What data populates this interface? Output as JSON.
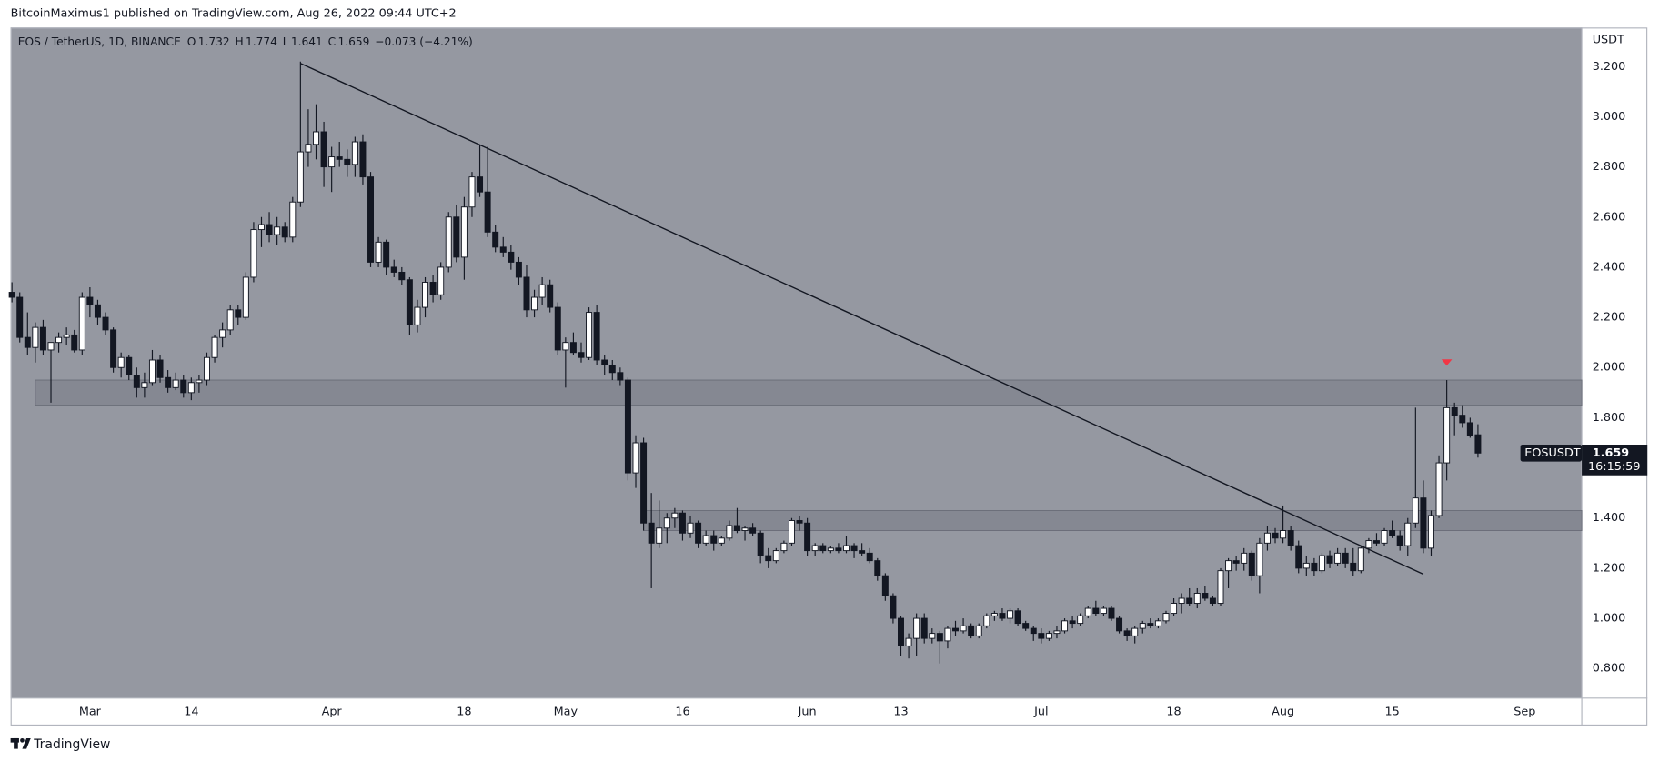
{
  "header": {
    "author_line": "BitcoinMaximus1 published on TradingView.com, Aug 26, 2022 09:44 UTC+2"
  },
  "footer": {
    "brand": "TradingView"
  },
  "chart_data": {
    "type": "candlestick",
    "symbol_line": "EOS / TetherUS, 1D, BINANCE",
    "ohlc_labels": [
      "O",
      "H",
      "L",
      "C"
    ],
    "change": "−0.073 (−4.21%)",
    "unit": "USDT",
    "ticker": "EOSUSDT",
    "countdown": "16:15:59",
    "up_color": "#ffffff",
    "down_color": "#131722",
    "marker_color": "#f23645",
    "x": [
      "02-19",
      "02-20",
      "02-21",
      "02-22",
      "02-23",
      "02-24",
      "02-25",
      "02-26",
      "02-27",
      "02-28",
      "03-01",
      "03-02",
      "03-03",
      "03-04",
      "03-05",
      "03-06",
      "03-07",
      "03-08",
      "03-09",
      "03-10",
      "03-11",
      "03-12",
      "03-13",
      "03-14",
      "03-15",
      "03-16",
      "03-17",
      "03-18",
      "03-19",
      "03-20",
      "03-21",
      "03-22",
      "03-23",
      "03-24",
      "03-25",
      "03-26",
      "03-27",
      "03-28",
      "03-29",
      "03-30",
      "03-31",
      "04-01",
      "04-02",
      "04-03",
      "04-04",
      "04-05",
      "04-06",
      "04-07",
      "04-08",
      "04-09",
      "04-10",
      "04-11",
      "04-12",
      "04-13",
      "04-14",
      "04-15",
      "04-16",
      "04-17",
      "04-18",
      "04-19",
      "04-20",
      "04-21",
      "04-22",
      "04-23",
      "04-24",
      "04-25",
      "04-26",
      "04-27",
      "04-28",
      "04-29",
      "04-30",
      "05-01",
      "05-02",
      "05-03",
      "05-04",
      "05-05",
      "05-06",
      "05-07",
      "05-08",
      "05-09",
      "05-10",
      "05-11",
      "05-12",
      "05-13",
      "05-14",
      "05-15",
      "05-16",
      "05-17",
      "05-18",
      "05-19",
      "05-20",
      "05-21",
      "05-22",
      "05-23",
      "05-24",
      "05-25",
      "05-26",
      "05-27",
      "05-28",
      "05-29",
      "05-30",
      "05-31",
      "06-01",
      "06-02",
      "06-03",
      "06-04",
      "06-05",
      "06-06",
      "06-07",
      "06-08",
      "06-09",
      "06-10",
      "06-11",
      "06-12",
      "06-13",
      "06-14",
      "06-15",
      "06-16",
      "06-17",
      "06-18",
      "06-19",
      "06-20",
      "06-21",
      "06-22",
      "06-23",
      "06-24",
      "06-25",
      "06-26",
      "06-27",
      "06-28",
      "06-29",
      "06-30",
      "07-01",
      "07-02",
      "07-03",
      "07-04",
      "07-05",
      "07-06",
      "07-07",
      "07-08",
      "07-09",
      "07-10",
      "07-11",
      "07-12",
      "07-13",
      "07-14",
      "07-15",
      "07-16",
      "07-17",
      "07-18",
      "07-19",
      "07-20",
      "07-21",
      "07-22",
      "07-23",
      "07-24",
      "07-25",
      "07-26",
      "07-27",
      "07-28",
      "07-29",
      "07-30",
      "07-31",
      "08-01",
      "08-02",
      "08-03",
      "08-04",
      "08-05",
      "08-06",
      "08-07",
      "08-08",
      "08-09",
      "08-10",
      "08-11",
      "08-12",
      "08-13",
      "08-14",
      "08-15",
      "08-16",
      "08-17",
      "08-18",
      "08-19",
      "08-20",
      "08-21",
      "08-22",
      "08-23",
      "08-24",
      "08-25",
      "08-26"
    ],
    "ohlc": [
      [
        2.3,
        2.34,
        2.26,
        2.28
      ],
      [
        2.28,
        2.3,
        2.1,
        2.12
      ],
      [
        2.12,
        2.22,
        2.05,
        2.08
      ],
      [
        2.08,
        2.18,
        2.02,
        2.16
      ],
      [
        2.16,
        2.19,
        2.05,
        2.07
      ],
      [
        2.07,
        2.1,
        1.86,
        2.1
      ],
      [
        2.1,
        2.14,
        2.06,
        2.12
      ],
      [
        2.12,
        2.16,
        2.09,
        2.13
      ],
      [
        2.13,
        2.15,
        2.06,
        2.07
      ],
      [
        2.07,
        2.3,
        2.05,
        2.28
      ],
      [
        2.28,
        2.32,
        2.2,
        2.25
      ],
      [
        2.25,
        2.27,
        2.17,
        2.2
      ],
      [
        2.2,
        2.22,
        2.13,
        2.15
      ],
      [
        2.15,
        2.16,
        1.98,
        2.0
      ],
      [
        2.0,
        2.06,
        1.96,
        2.04
      ],
      [
        2.04,
        2.05,
        1.95,
        1.97
      ],
      [
        1.97,
        2.0,
        1.88,
        1.92
      ],
      [
        1.92,
        1.98,
        1.88,
        1.94
      ],
      [
        1.94,
        2.07,
        1.93,
        2.03
      ],
      [
        2.03,
        2.05,
        1.94,
        1.96
      ],
      [
        1.96,
        1.99,
        1.9,
        1.92
      ],
      [
        1.92,
        1.98,
        1.91,
        1.95
      ],
      [
        1.95,
        1.97,
        1.88,
        1.9
      ],
      [
        1.9,
        1.96,
        1.87,
        1.94
      ],
      [
        1.94,
        1.97,
        1.9,
        1.95
      ],
      [
        1.95,
        2.06,
        1.93,
        2.04
      ],
      [
        2.04,
        2.13,
        2.02,
        2.12
      ],
      [
        2.12,
        2.18,
        2.08,
        2.15
      ],
      [
        2.15,
        2.25,
        2.13,
        2.23
      ],
      [
        2.23,
        2.25,
        2.17,
        2.2
      ],
      [
        2.2,
        2.38,
        2.19,
        2.36
      ],
      [
        2.36,
        2.58,
        2.34,
        2.55
      ],
      [
        2.55,
        2.6,
        2.48,
        2.57
      ],
      [
        2.57,
        2.62,
        2.5,
        2.53
      ],
      [
        2.53,
        2.6,
        2.49,
        2.56
      ],
      [
        2.56,
        2.58,
        2.5,
        2.52
      ],
      [
        2.52,
        2.68,
        2.5,
        2.66
      ],
      [
        2.66,
        3.22,
        2.64,
        2.86
      ],
      [
        2.86,
        3.03,
        2.8,
        2.89
      ],
      [
        2.89,
        3.05,
        2.83,
        2.94
      ],
      [
        2.94,
        2.98,
        2.72,
        2.8
      ],
      [
        2.8,
        2.88,
        2.7,
        2.84
      ],
      [
        2.84,
        2.9,
        2.8,
        2.83
      ],
      [
        2.83,
        2.87,
        2.76,
        2.81
      ],
      [
        2.81,
        2.92,
        2.76,
        2.9
      ],
      [
        2.9,
        2.93,
        2.73,
        2.76
      ],
      [
        2.76,
        2.78,
        2.4,
        2.42
      ],
      [
        2.42,
        2.52,
        2.4,
        2.5
      ],
      [
        2.5,
        2.51,
        2.37,
        2.4
      ],
      [
        2.4,
        2.43,
        2.36,
        2.38
      ],
      [
        2.38,
        2.4,
        2.33,
        2.35
      ],
      [
        2.35,
        2.36,
        2.13,
        2.17
      ],
      [
        2.17,
        2.27,
        2.14,
        2.24
      ],
      [
        2.24,
        2.36,
        2.2,
        2.34
      ],
      [
        2.34,
        2.37,
        2.26,
        2.29
      ],
      [
        2.29,
        2.42,
        2.27,
        2.4
      ],
      [
        2.4,
        2.62,
        2.38,
        2.6
      ],
      [
        2.6,
        2.65,
        2.42,
        2.44
      ],
      [
        2.44,
        2.68,
        2.35,
        2.64
      ],
      [
        2.64,
        2.78,
        2.6,
        2.76
      ],
      [
        2.76,
        2.89,
        2.68,
        2.7
      ],
      [
        2.7,
        2.88,
        2.52,
        2.54
      ],
      [
        2.54,
        2.57,
        2.46,
        2.48
      ],
      [
        2.48,
        2.52,
        2.44,
        2.46
      ],
      [
        2.46,
        2.49,
        2.39,
        2.42
      ],
      [
        2.42,
        2.44,
        2.33,
        2.36
      ],
      [
        2.36,
        2.41,
        2.2,
        2.23
      ],
      [
        2.23,
        2.31,
        2.2,
        2.28
      ],
      [
        2.28,
        2.36,
        2.25,
        2.33
      ],
      [
        2.33,
        2.35,
        2.22,
        2.24
      ],
      [
        2.24,
        2.26,
        2.05,
        2.07
      ],
      [
        2.07,
        2.12,
        1.92,
        2.1
      ],
      [
        2.1,
        2.14,
        2.05,
        2.06
      ],
      [
        2.06,
        2.1,
        2.02,
        2.04
      ],
      [
        2.04,
        2.24,
        2.03,
        2.22
      ],
      [
        2.22,
        2.25,
        2.01,
        2.03
      ],
      [
        2.03,
        2.05,
        1.97,
        2.01
      ],
      [
        2.01,
        2.03,
        1.95,
        1.98
      ],
      [
        1.98,
        2.0,
        1.93,
        1.95
      ],
      [
        1.95,
        1.96,
        1.55,
        1.58
      ],
      [
        1.58,
        1.73,
        1.52,
        1.7
      ],
      [
        1.7,
        1.72,
        1.35,
        1.38
      ],
      [
        1.38,
        1.5,
        1.12,
        1.3
      ],
      [
        1.3,
        1.47,
        1.28,
        1.36
      ],
      [
        1.36,
        1.42,
        1.3,
        1.4
      ],
      [
        1.4,
        1.44,
        1.36,
        1.42
      ],
      [
        1.42,
        1.43,
        1.31,
        1.34
      ],
      [
        1.34,
        1.41,
        1.32,
        1.38
      ],
      [
        1.38,
        1.39,
        1.28,
        1.3
      ],
      [
        1.3,
        1.35,
        1.29,
        1.33
      ],
      [
        1.33,
        1.35,
        1.27,
        1.3
      ],
      [
        1.3,
        1.33,
        1.29,
        1.32
      ],
      [
        1.32,
        1.39,
        1.31,
        1.37
      ],
      [
        1.37,
        1.44,
        1.34,
        1.35
      ],
      [
        1.35,
        1.37,
        1.31,
        1.36
      ],
      [
        1.36,
        1.38,
        1.33,
        1.34
      ],
      [
        1.34,
        1.35,
        1.22,
        1.25
      ],
      [
        1.25,
        1.28,
        1.2,
        1.23
      ],
      [
        1.23,
        1.28,
        1.22,
        1.27
      ],
      [
        1.27,
        1.31,
        1.26,
        1.3
      ],
      [
        1.3,
        1.4,
        1.29,
        1.39
      ],
      [
        1.39,
        1.41,
        1.35,
        1.38
      ],
      [
        1.38,
        1.4,
        1.25,
        1.27
      ],
      [
        1.27,
        1.3,
        1.25,
        1.29
      ],
      [
        1.29,
        1.3,
        1.26,
        1.27
      ],
      [
        1.27,
        1.29,
        1.26,
        1.28
      ],
      [
        1.28,
        1.3,
        1.26,
        1.27
      ],
      [
        1.27,
        1.33,
        1.26,
        1.29
      ],
      [
        1.29,
        1.3,
        1.24,
        1.27
      ],
      [
        1.27,
        1.3,
        1.25,
        1.26
      ],
      [
        1.26,
        1.28,
        1.22,
        1.23
      ],
      [
        1.23,
        1.24,
        1.15,
        1.17
      ],
      [
        1.17,
        1.18,
        1.07,
        1.09
      ],
      [
        1.09,
        1.1,
        0.98,
        1.0
      ],
      [
        1.0,
        1.01,
        0.85,
        0.89
      ],
      [
        0.89,
        0.94,
        0.84,
        0.92
      ],
      [
        0.92,
        1.02,
        0.85,
        1.0
      ],
      [
        1.0,
        1.02,
        0.9,
        0.92
      ],
      [
        0.92,
        0.96,
        0.9,
        0.94
      ],
      [
        0.94,
        0.95,
        0.82,
        0.91
      ],
      [
        0.91,
        0.97,
        0.88,
        0.96
      ],
      [
        0.96,
        0.99,
        0.93,
        0.95
      ],
      [
        0.95,
        1.0,
        0.94,
        0.97
      ],
      [
        0.97,
        0.98,
        0.92,
        0.93
      ],
      [
        0.93,
        0.98,
        0.92,
        0.97
      ],
      [
        0.97,
        1.02,
        0.96,
        1.01
      ],
      [
        1.01,
        1.03,
        0.99,
        1.02
      ],
      [
        1.02,
        1.04,
        0.99,
        1.0
      ],
      [
        1.0,
        1.04,
        0.98,
        1.03
      ],
      [
        1.03,
        1.04,
        0.97,
        0.98
      ],
      [
        0.98,
        0.99,
        0.95,
        0.96
      ],
      [
        0.96,
        0.97,
        0.91,
        0.94
      ],
      [
        0.94,
        0.96,
        0.9,
        0.92
      ],
      [
        0.92,
        0.95,
        0.91,
        0.94
      ],
      [
        0.94,
        0.97,
        0.92,
        0.95
      ],
      [
        0.95,
        1.0,
        0.94,
        0.99
      ],
      [
        0.99,
        1.01,
        0.96,
        0.98
      ],
      [
        0.98,
        1.02,
        0.97,
        1.01
      ],
      [
        1.01,
        1.05,
        1.0,
        1.04
      ],
      [
        1.04,
        1.07,
        1.01,
        1.02
      ],
      [
        1.02,
        1.05,
        1.01,
        1.04
      ],
      [
        1.04,
        1.05,
        0.99,
        1.0
      ],
      [
        1.0,
        1.01,
        0.94,
        0.95
      ],
      [
        0.95,
        0.96,
        0.91,
        0.93
      ],
      [
        0.93,
        0.97,
        0.9,
        0.96
      ],
      [
        0.96,
        0.99,
        0.94,
        0.98
      ],
      [
        0.98,
        1.0,
        0.96,
        0.97
      ],
      [
        0.97,
        1.0,
        0.96,
        0.99
      ],
      [
        0.99,
        1.03,
        0.98,
        1.02
      ],
      [
        1.02,
        1.08,
        1.01,
        1.06
      ],
      [
        1.06,
        1.1,
        1.02,
        1.08
      ],
      [
        1.08,
        1.12,
        1.05,
        1.06
      ],
      [
        1.06,
        1.12,
        1.04,
        1.1
      ],
      [
        1.1,
        1.13,
        1.07,
        1.08
      ],
      [
        1.08,
        1.09,
        1.05,
        1.06
      ],
      [
        1.06,
        1.2,
        1.05,
        1.19
      ],
      [
        1.19,
        1.24,
        1.12,
        1.23
      ],
      [
        1.23,
        1.25,
        1.19,
        1.22
      ],
      [
        1.22,
        1.28,
        1.19,
        1.26
      ],
      [
        1.26,
        1.27,
        1.15,
        1.17
      ],
      [
        1.17,
        1.32,
        1.1,
        1.3
      ],
      [
        1.3,
        1.37,
        1.27,
        1.34
      ],
      [
        1.34,
        1.36,
        1.3,
        1.32
      ],
      [
        1.32,
        1.45,
        1.3,
        1.35
      ],
      [
        1.35,
        1.37,
        1.27,
        1.29
      ],
      [
        1.29,
        1.31,
        1.18,
        1.2
      ],
      [
        1.2,
        1.25,
        1.17,
        1.22
      ],
      [
        1.22,
        1.24,
        1.17,
        1.19
      ],
      [
        1.19,
        1.26,
        1.18,
        1.25
      ],
      [
        1.25,
        1.27,
        1.2,
        1.22
      ],
      [
        1.22,
        1.28,
        1.21,
        1.26
      ],
      [
        1.26,
        1.28,
        1.2,
        1.22
      ],
      [
        1.22,
        1.28,
        1.17,
        1.19
      ],
      [
        1.19,
        1.29,
        1.18,
        1.28
      ],
      [
        1.28,
        1.32,
        1.26,
        1.31
      ],
      [
        1.31,
        1.34,
        1.29,
        1.3
      ],
      [
        1.3,
        1.36,
        1.29,
        1.35
      ],
      [
        1.35,
        1.39,
        1.32,
        1.33
      ],
      [
        1.33,
        1.35,
        1.27,
        1.29
      ],
      [
        1.29,
        1.4,
        1.25,
        1.38
      ],
      [
        1.38,
        1.84,
        1.36,
        1.48
      ],
      [
        1.48,
        1.55,
        1.26,
        1.28
      ],
      [
        1.28,
        1.43,
        1.25,
        1.41
      ],
      [
        1.41,
        1.65,
        1.4,
        1.62
      ],
      [
        1.62,
        1.95,
        1.55,
        1.84
      ],
      [
        1.84,
        1.86,
        1.73,
        1.81
      ],
      [
        1.81,
        1.85,
        1.76,
        1.78
      ],
      [
        1.78,
        1.8,
        1.72,
        1.73
      ],
      [
        1.732,
        1.774,
        1.641,
        1.659
      ]
    ],
    "ylim": [
      0.682,
      3.356
    ],
    "yticks": [
      {
        "value": 0.8,
        "label": "0.800"
      },
      {
        "value": 1.0,
        "label": "1.000"
      },
      {
        "value": 1.2,
        "label": "1.200"
      },
      {
        "value": 1.4,
        "label": "1.400"
      },
      {
        "value": 1.6,
        "label": "1.600"
      },
      {
        "value": 1.8,
        "label": "1.800"
      },
      {
        "value": 2.0,
        "label": "2.000"
      },
      {
        "value": 2.2,
        "label": "2.200"
      },
      {
        "value": 2.4,
        "label": "2.400"
      },
      {
        "value": 2.6,
        "label": "2.600"
      },
      {
        "value": 2.8,
        "label": "2.800"
      },
      {
        "value": 3.0,
        "label": "3.000"
      },
      {
        "value": 3.2,
        "label": "3.200"
      }
    ],
    "xticks": [
      {
        "value": "03-01",
        "label": "Mar"
      },
      {
        "value": "03-14",
        "label": "14"
      },
      {
        "value": "04-01",
        "label": "Apr"
      },
      {
        "value": "04-18",
        "label": "18"
      },
      {
        "value": "05-01",
        "label": "May"
      },
      {
        "value": "05-16",
        "label": "16"
      },
      {
        "value": "06-01",
        "label": "Jun"
      },
      {
        "value": "06-13",
        "label": "13"
      },
      {
        "value": "07-01",
        "label": "Jul"
      },
      {
        "value": "07-18",
        "label": "18"
      },
      {
        "value": "08-01",
        "label": "Aug"
      },
      {
        "value": "08-15",
        "label": "15"
      },
      {
        "value": "09-01",
        "label": "Sep"
      }
    ],
    "grid": false,
    "zones": [
      {
        "start": "02-22",
        "low": 1.85,
        "high": 1.95
      },
      {
        "start": "05-11",
        "low": 1.35,
        "high": 1.43
      }
    ],
    "trendline": {
      "x": [
        "03-28",
        "08-19"
      ],
      "y": [
        3.213,
        1.176
      ]
    },
    "marker": {
      "x": "08-22",
      "y": 2.02
    }
  }
}
